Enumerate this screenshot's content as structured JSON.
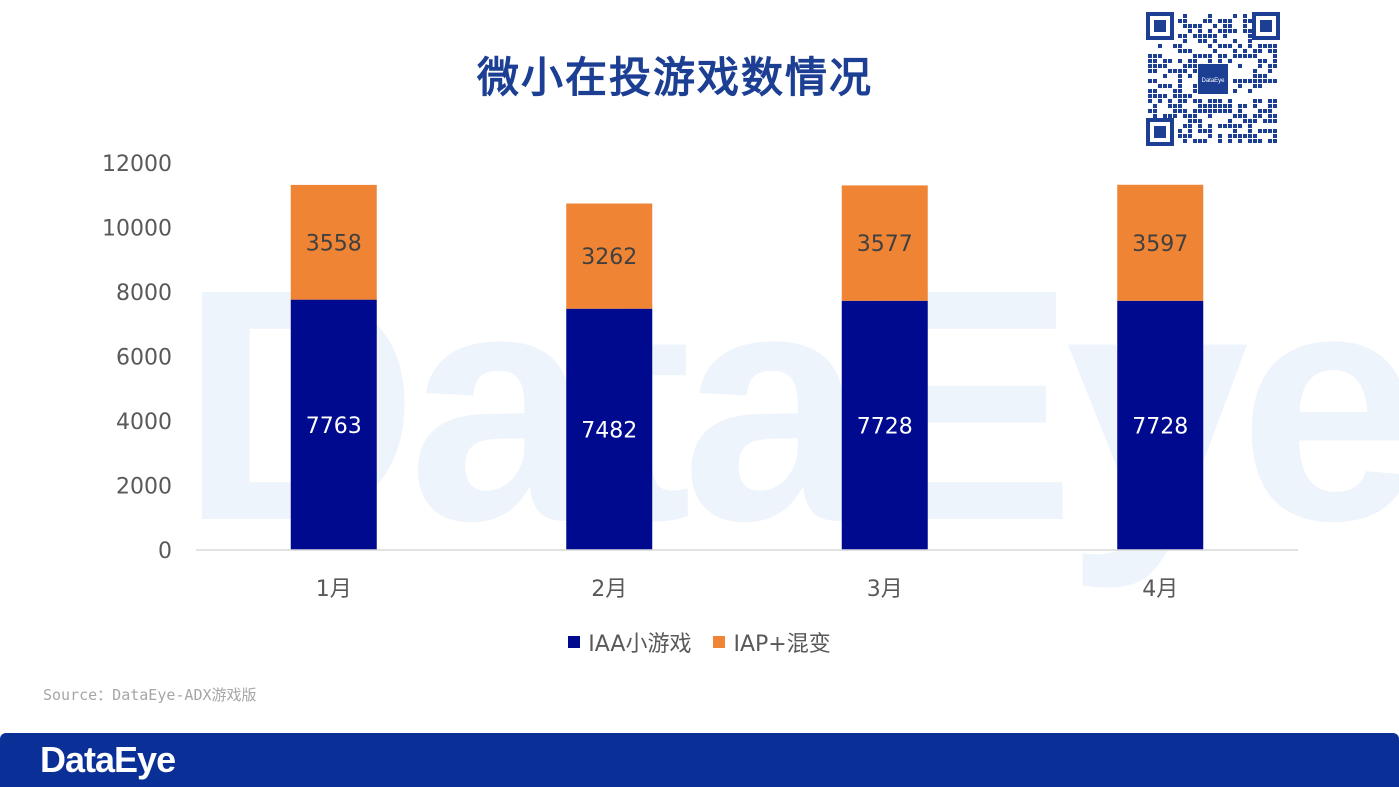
{
  "title": "微小在投游戏数情况",
  "watermark": "DataEye",
  "qr_label": "DataEye",
  "source": "Source：DataEye-ADX游戏版",
  "footer_logo": "DataEye",
  "colors": {
    "iaa": "#000a8e",
    "iap": "#ee8434",
    "title": "#1c3f94",
    "footer": "#0a2f96"
  },
  "legend": [
    {
      "name": "IAA小游戏",
      "color": "#000a8e"
    },
    {
      "name": "IAP+混变",
      "color": "#ee8434"
    }
  ],
  "chart_data": {
    "type": "bar",
    "stacked": true,
    "title": "微小在投游戏数情况",
    "categories": [
      "1月",
      "2月",
      "3月",
      "4月"
    ],
    "series": [
      {
        "name": "IAA小游戏",
        "color": "#000a8e",
        "values": [
          7763,
          7482,
          7728,
          7728
        ]
      },
      {
        "name": "IAP+混变",
        "color": "#ee8434",
        "values": [
          3558,
          3262,
          3577,
          3597
        ]
      }
    ],
    "ylim": [
      0,
      12000
    ],
    "yticks": [
      0,
      2000,
      4000,
      6000,
      8000,
      10000,
      12000
    ],
    "grid": false,
    "legend_position": "bottom"
  }
}
